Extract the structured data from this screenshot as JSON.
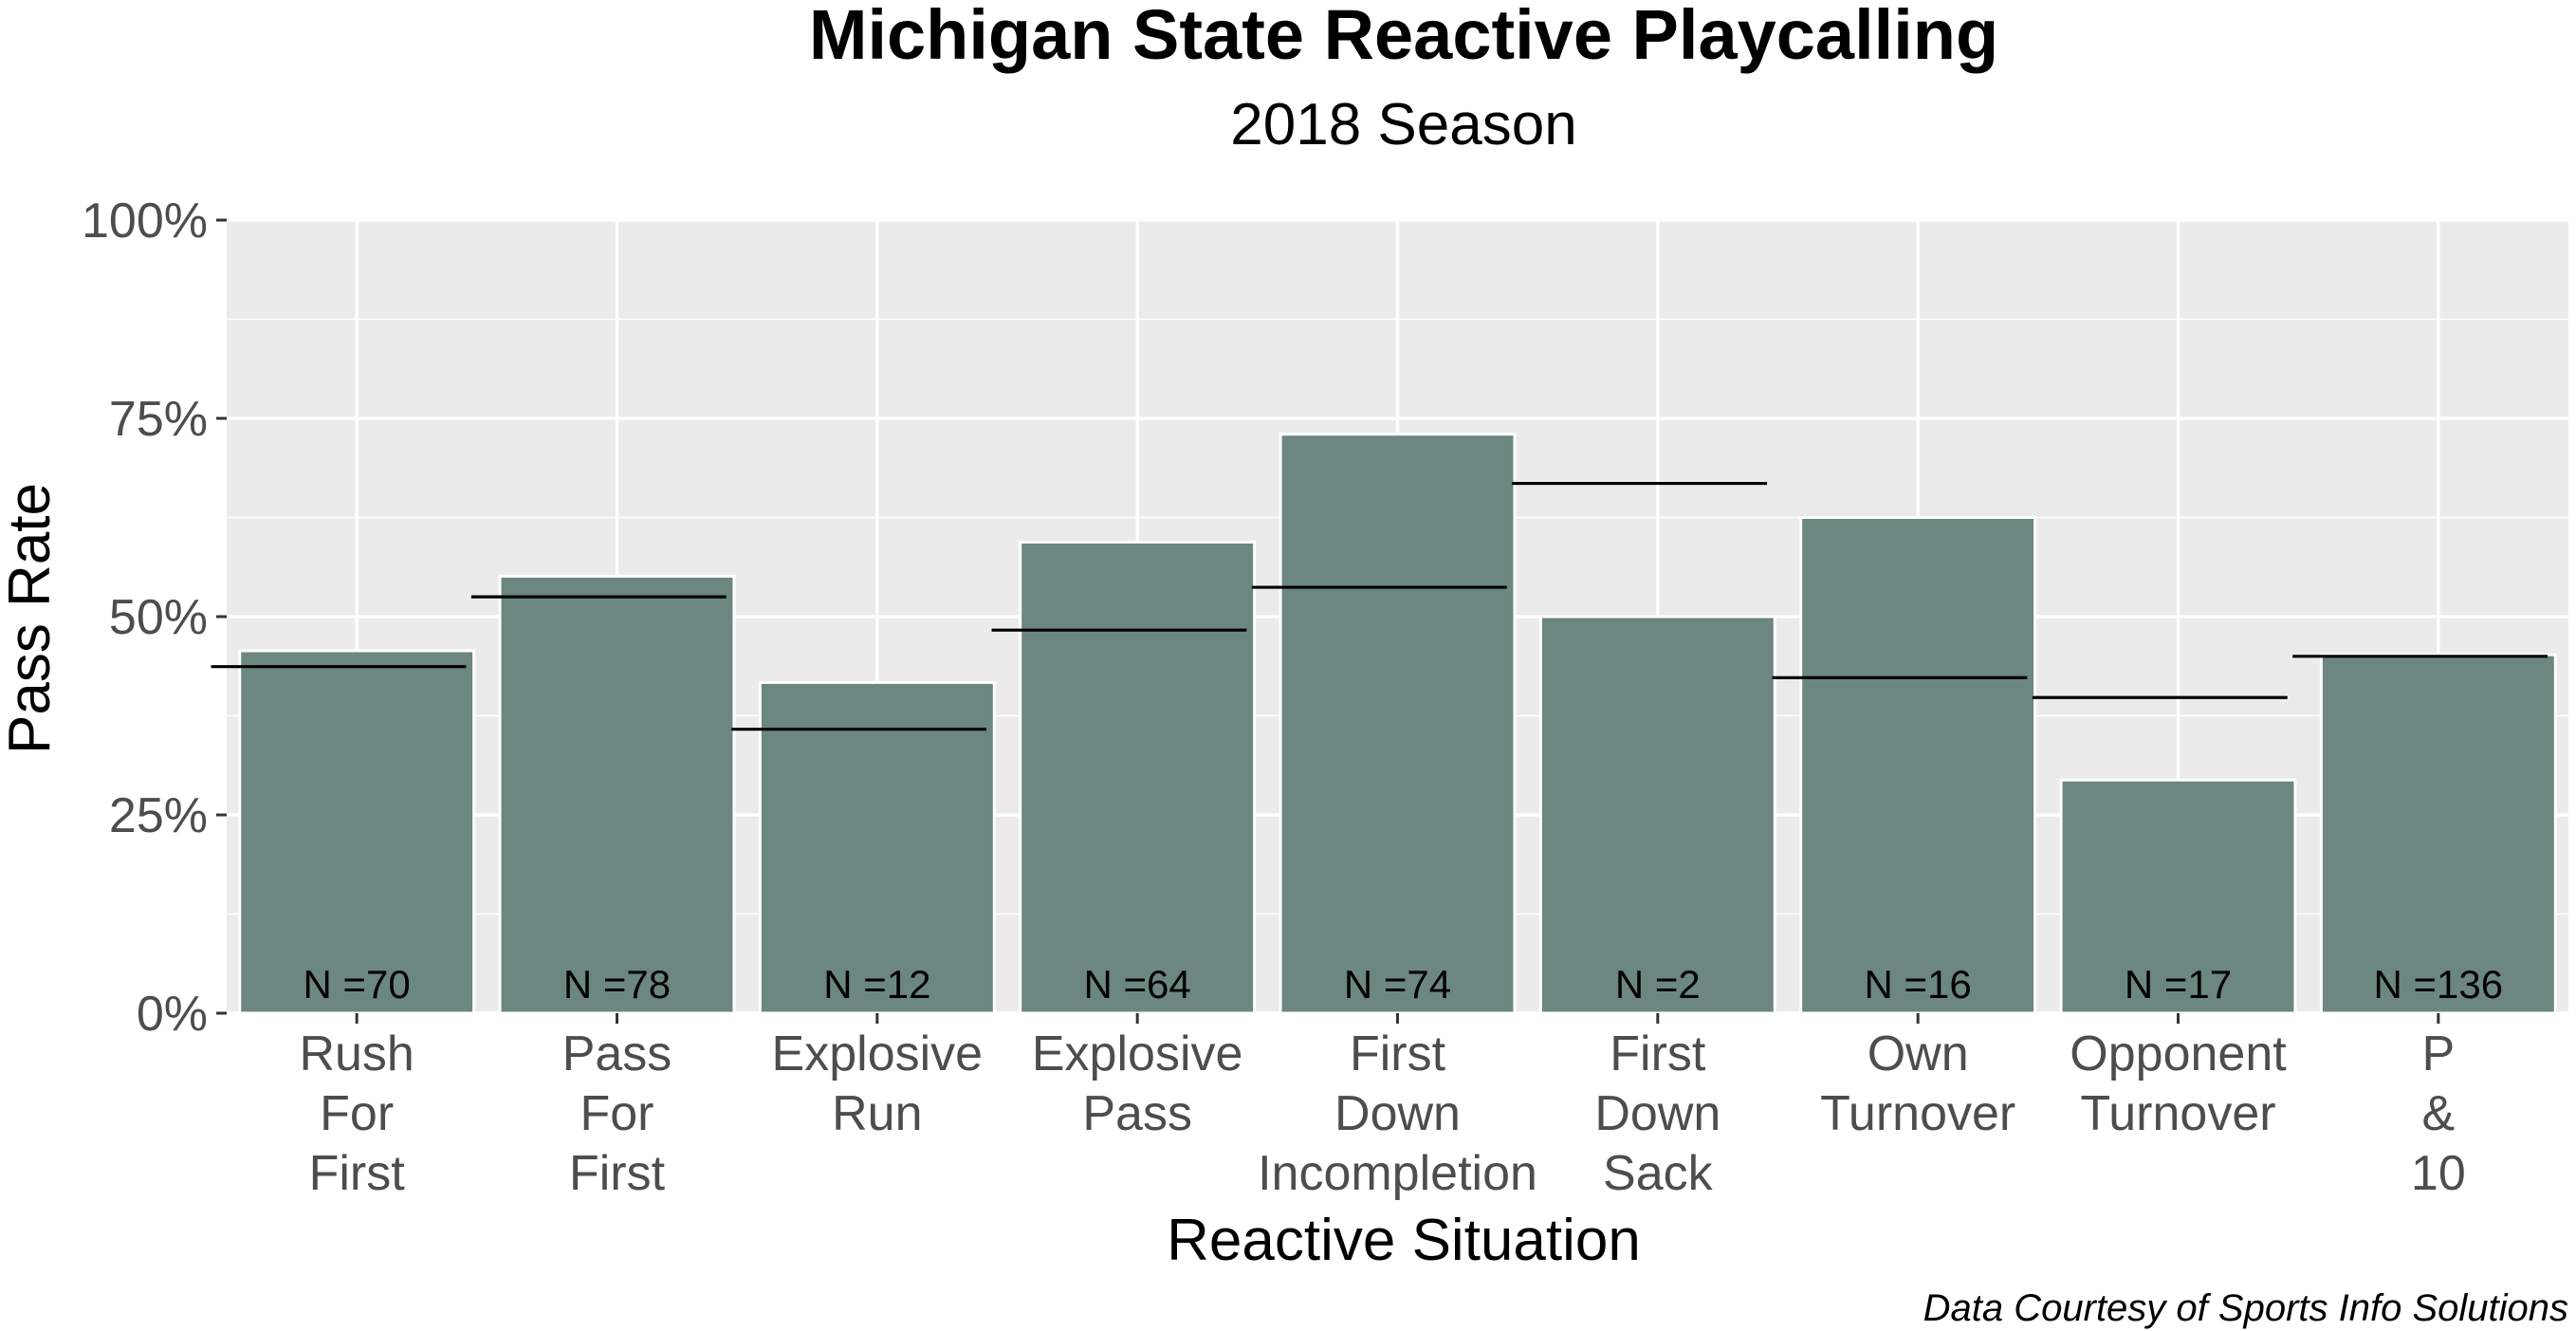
{
  "chart_data": {
    "type": "bar",
    "title": "Michigan State Reactive Playcalling",
    "subtitle": "2018 Season",
    "xlabel": "Reactive Situation",
    "ylabel": "Pass Rate",
    "caption": "Data Courtesy of Sports Info Solutions",
    "ylim": [
      0,
      1
    ],
    "yticks": [
      0,
      0.25,
      0.5,
      0.75,
      1.0
    ],
    "ytick_labels": [
      "0%",
      "25%",
      "50%",
      "75%",
      "100%"
    ],
    "grid": true,
    "bar_color": "#6b8780",
    "bar_outline_color": "#ffffff",
    "reference_line_color": "#000000",
    "panel_background": "#ebebeb",
    "categories": [
      [
        "Rush",
        "For",
        "First"
      ],
      [
        "Pass",
        "For",
        "First"
      ],
      [
        "Explosive",
        "Run"
      ],
      [
        "Explosive",
        "Pass"
      ],
      [
        "First",
        "Down",
        "Incompletion"
      ],
      [
        "First",
        "Down",
        "Sack"
      ],
      [
        "Own",
        "Turnover"
      ],
      [
        "Opponent",
        "Turnover"
      ],
      [
        "P",
        "&",
        "10"
      ]
    ],
    "series": [
      {
        "values": [
          0.457,
          0.551,
          0.417,
          0.594,
          0.73,
          0.5,
          0.625,
          0.294,
          0.452
        ]
      },
      {
        "values": [
          0.437,
          0.525,
          0.358,
          0.483,
          0.537,
          0.668,
          0.423,
          0.398,
          0.45
        ]
      }
    ],
    "n_labels": [
      "N =70",
      "N =78",
      "N =12",
      "N =64",
      "N =74",
      "N =2",
      "N =16",
      "N =17",
      "N =136"
    ]
  }
}
